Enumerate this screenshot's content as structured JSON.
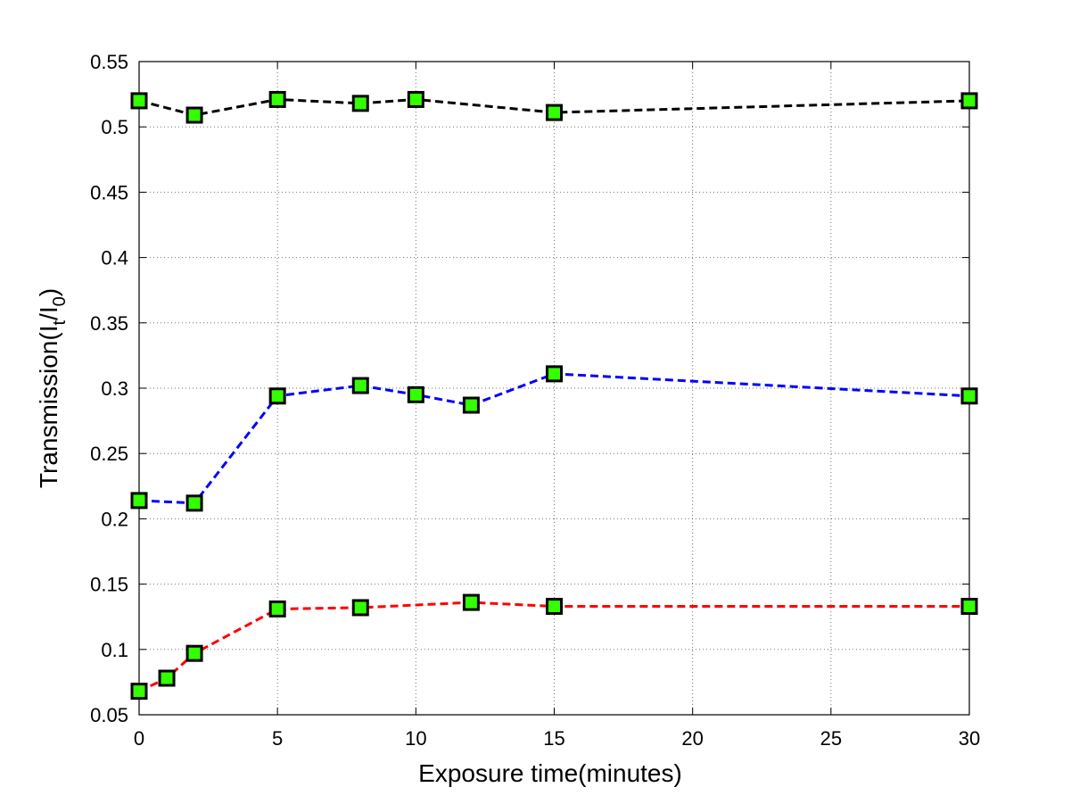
{
  "chart_data": {
    "type": "line",
    "title": "",
    "xlabel": "Exposure time(minutes)",
    "ylabel_parts": {
      "prefix": "Transmission(I",
      "sub1": "t",
      "mid": "/I",
      "sub2": "0",
      "suffix": ")"
    },
    "xlim": [
      0,
      30
    ],
    "ylim": [
      0.05,
      0.55
    ],
    "xticks": [
      "0",
      "5",
      "10",
      "15",
      "20",
      "25",
      "30"
    ],
    "yticks": [
      "0.05",
      "0.1",
      "0.15",
      "0.2",
      "0.25",
      "0.3",
      "0.35",
      "0.4",
      "0.45",
      "0.5",
      "0.55"
    ],
    "grid": true,
    "marker": {
      "shape": "square",
      "fill": "#33ff00",
      "edge": "#000000"
    },
    "series": [
      {
        "color": "#000000",
        "x": [
          0,
          2,
          5,
          8,
          10,
          15,
          30
        ],
        "y": [
          0.52,
          0.509,
          0.521,
          0.518,
          0.521,
          0.511,
          0.52
        ]
      },
      {
        "color": "#0000ff",
        "x": [
          0,
          2,
          5,
          8,
          10,
          12,
          15,
          30
        ],
        "y": [
          0.214,
          0.212,
          0.294,
          0.302,
          0.295,
          0.287,
          0.311,
          0.294
        ]
      },
      {
        "color": "#ff0000",
        "x": [
          0,
          1,
          2,
          5,
          8,
          12,
          15,
          30
        ],
        "y": [
          0.068,
          0.078,
          0.097,
          0.131,
          0.132,
          0.136,
          0.133,
          0.133
        ]
      }
    ]
  }
}
